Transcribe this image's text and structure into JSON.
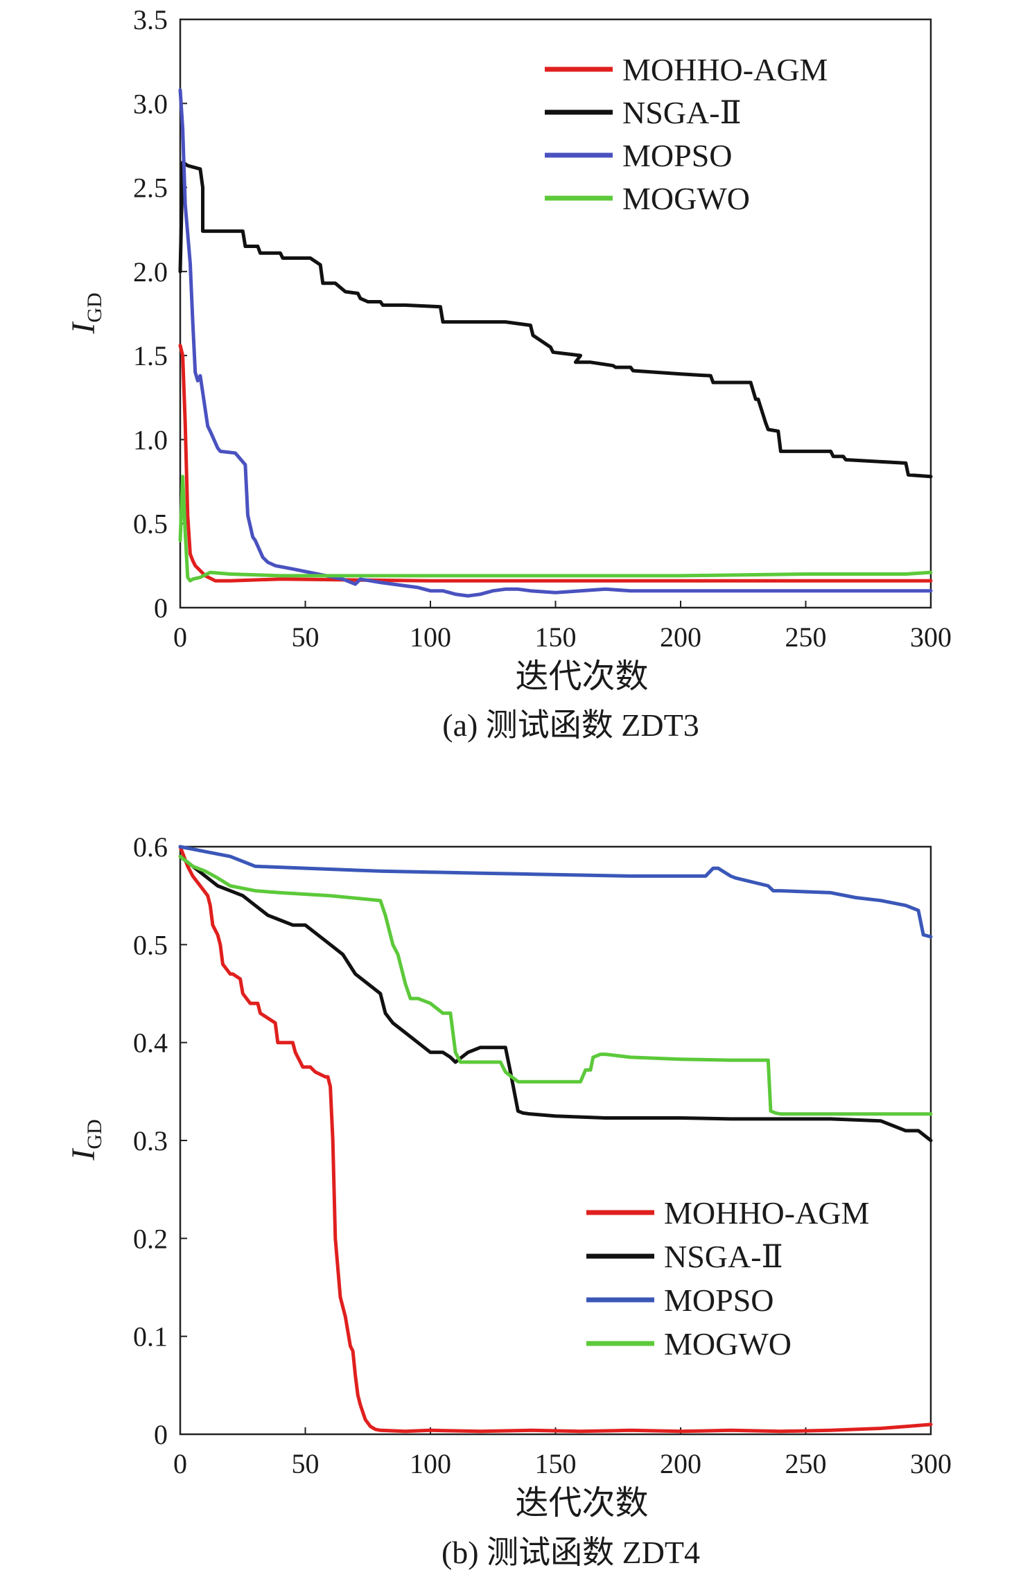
{
  "chart_data": [
    {
      "type": "line",
      "caption": "(a) 测试函数 ZDT3",
      "xlabel": "迭代次数",
      "ylabel": "I",
      "ylabel_sub": "GD",
      "xlim": [
        0,
        300
      ],
      "ylim": [
        0,
        3.5
      ],
      "xticks": [
        0,
        50,
        100,
        150,
        200,
        250,
        300
      ],
      "xtick_labels": [
        "0",
        "50",
        "100",
        "150",
        "200",
        "250",
        "300"
      ],
      "yticks": [
        0,
        0.5,
        1.0,
        1.5,
        2.0,
        2.5,
        3.0,
        3.5
      ],
      "ytick_labels": [
        "0",
        "0.5",
        "1.0",
        "1.5",
        "2.0",
        "2.5",
        "3.0",
        "3.5"
      ],
      "legend_position": "top-right",
      "series": [
        {
          "name": "NSGA-Ⅱ",
          "color": "#111111",
          "x": [
            0,
            1,
            3,
            8,
            9,
            9,
            25,
            26,
            31,
            32,
            40,
            41,
            52,
            56,
            57,
            62,
            66,
            71,
            72,
            75,
            80,
            81,
            90,
            104,
            105,
            130,
            140,
            141,
            148,
            149,
            160,
            158,
            164,
            173,
            174,
            180,
            181,
            200,
            212,
            213,
            228,
            230,
            231,
            234,
            235,
            239,
            240,
            260,
            261,
            265,
            266,
            290,
            291,
            300
          ],
          "y": [
            2.0,
            2.65,
            2.63,
            2.61,
            2.5,
            2.24,
            2.24,
            2.15,
            2.15,
            2.11,
            2.11,
            2.08,
            2.08,
            2.04,
            1.93,
            1.93,
            1.88,
            1.87,
            1.84,
            1.82,
            1.82,
            1.8,
            1.8,
            1.79,
            1.7,
            1.7,
            1.68,
            1.62,
            1.55,
            1.52,
            1.5,
            1.46,
            1.46,
            1.44,
            1.43,
            1.43,
            1.41,
            1.39,
            1.38,
            1.34,
            1.34,
            1.24,
            1.24,
            1.1,
            1.06,
            1.05,
            0.93,
            0.93,
            0.9,
            0.9,
            0.88,
            0.86,
            0.79,
            0.78
          ]
        },
        {
          "name": "MOPSO",
          "color": "#4a52c0",
          "x": [
            0,
            1,
            2,
            4,
            5,
            6,
            7,
            8,
            11,
            12,
            15,
            16,
            22,
            26,
            27,
            29,
            30,
            33,
            35,
            38,
            45,
            55,
            65,
            70,
            72,
            80,
            90,
            95,
            100,
            105,
            110,
            115,
            120,
            125,
            130,
            135,
            140,
            150,
            160,
            170,
            180,
            190,
            200,
            250,
            300
          ],
          "y": [
            3.08,
            2.85,
            2.4,
            2.05,
            1.7,
            1.4,
            1.35,
            1.38,
            1.08,
            1.05,
            0.95,
            0.93,
            0.92,
            0.85,
            0.55,
            0.42,
            0.4,
            0.3,
            0.27,
            0.25,
            0.23,
            0.2,
            0.17,
            0.14,
            0.17,
            0.15,
            0.13,
            0.12,
            0.1,
            0.1,
            0.08,
            0.07,
            0.08,
            0.1,
            0.11,
            0.11,
            0.1,
            0.09,
            0.1,
            0.11,
            0.1,
            0.1,
            0.1,
            0.1,
            0.1
          ]
        },
        {
          "name": "MOHHO-AGM",
          "color": "#e0201e",
          "x": [
            0,
            1,
            2,
            3,
            4,
            5,
            6,
            8,
            10,
            14,
            20,
            40,
            100,
            150,
            200,
            250,
            300
          ],
          "y": [
            1.56,
            1.5,
            1.1,
            0.55,
            0.32,
            0.28,
            0.25,
            0.22,
            0.19,
            0.16,
            0.16,
            0.17,
            0.16,
            0.16,
            0.16,
            0.16,
            0.16
          ]
        },
        {
          "name": "MOGWO",
          "color": "#5cc93a",
          "x": [
            0,
            1,
            2,
            3,
            4,
            5,
            8,
            12,
            20,
            40,
            60,
            80,
            100,
            150,
            200,
            250,
            290,
            300
          ],
          "y": [
            0.4,
            0.78,
            0.45,
            0.18,
            0.16,
            0.17,
            0.18,
            0.21,
            0.2,
            0.19,
            0.19,
            0.19,
            0.19,
            0.19,
            0.19,
            0.2,
            0.2,
            0.21
          ]
        }
      ]
    },
    {
      "type": "line",
      "caption": "(b) 测试函数 ZDT4",
      "xlabel": "迭代次数",
      "ylabel": "I",
      "ylabel_sub": "GD",
      "xlim": [
        0,
        300
      ],
      "ylim": [
        0,
        0.6
      ],
      "xticks": [
        0,
        50,
        100,
        150,
        200,
        250,
        300
      ],
      "xtick_labels": [
        "0",
        "50",
        "100",
        "150",
        "200",
        "250",
        "300"
      ],
      "yticks": [
        0,
        0.1,
        0.2,
        0.3,
        0.4,
        0.5,
        0.6
      ],
      "ytick_labels": [
        "0",
        "0.1",
        "0.2",
        "0.3",
        "0.4",
        "0.5",
        "0.6"
      ],
      "legend_position": "bottom-right",
      "series": [
        {
          "name": "MOHHO-AGM",
          "color": "#e0201e",
          "x": [
            0,
            3,
            5,
            8,
            11,
            12,
            13,
            15,
            16,
            17,
            20,
            21,
            24,
            25,
            28,
            31,
            32,
            38,
            39,
            45,
            46,
            48,
            49,
            52,
            54,
            58,
            59,
            60,
            61,
            62,
            63,
            64,
            66,
            68,
            69,
            70,
            71,
            72,
            74,
            76,
            78,
            80,
            90,
            100,
            120,
            140,
            160,
            180,
            200,
            220,
            240,
            260,
            280,
            290,
            300
          ],
          "y": [
            0.6,
            0.58,
            0.57,
            0.56,
            0.55,
            0.54,
            0.52,
            0.51,
            0.5,
            0.48,
            0.47,
            0.47,
            0.465,
            0.45,
            0.44,
            0.44,
            0.43,
            0.42,
            0.4,
            0.4,
            0.39,
            0.38,
            0.375,
            0.375,
            0.37,
            0.365,
            0.365,
            0.355,
            0.3,
            0.2,
            0.17,
            0.14,
            0.12,
            0.09,
            0.085,
            0.06,
            0.04,
            0.03,
            0.015,
            0.008,
            0.005,
            0.004,
            0.003,
            0.004,
            0.003,
            0.004,
            0.003,
            0.004,
            0.003,
            0.004,
            0.003,
            0.004,
            0.006,
            0.008,
            0.01
          ]
        },
        {
          "name": "NSGA-Ⅱ",
          "color": "#111111",
          "x": [
            0,
            5,
            10,
            15,
            20,
            25,
            30,
            35,
            40,
            45,
            50,
            55,
            60,
            65,
            70,
            75,
            80,
            82,
            85,
            90,
            95,
            100,
            105,
            108,
            110,
            115,
            120,
            125,
            130,
            132,
            135,
            137,
            140,
            150,
            160,
            170,
            180,
            200,
            220,
            240,
            260,
            280,
            290,
            295,
            300
          ],
          "y": [
            0.59,
            0.58,
            0.57,
            0.56,
            0.555,
            0.55,
            0.54,
            0.53,
            0.525,
            0.52,
            0.52,
            0.51,
            0.5,
            0.49,
            0.47,
            0.46,
            0.45,
            0.43,
            0.42,
            0.41,
            0.4,
            0.39,
            0.39,
            0.385,
            0.38,
            0.39,
            0.395,
            0.395,
            0.395,
            0.37,
            0.33,
            0.328,
            0.327,
            0.325,
            0.324,
            0.323,
            0.323,
            0.323,
            0.322,
            0.322,
            0.322,
            0.32,
            0.31,
            0.31,
            0.3
          ]
        },
        {
          "name": "MOPSO",
          "color": "#3a57b8",
          "x": [
            0,
            10,
            20,
            30,
            50,
            60,
            80,
            100,
            120,
            140,
            160,
            180,
            200,
            210,
            213,
            215,
            220,
            222,
            235,
            237,
            240,
            260,
            270,
            280,
            290,
            295,
            297,
            300
          ],
          "y": [
            0.6,
            0.595,
            0.59,
            0.58,
            0.578,
            0.577,
            0.575,
            0.574,
            0.573,
            0.572,
            0.571,
            0.57,
            0.57,
            0.57,
            0.578,
            0.578,
            0.57,
            0.568,
            0.56,
            0.555,
            0.555,
            0.553,
            0.548,
            0.545,
            0.54,
            0.535,
            0.51,
            0.508
          ]
        },
        {
          "name": "MOGWO",
          "color": "#5cc93a",
          "x": [
            0,
            5,
            10,
            15,
            20,
            30,
            40,
            60,
            80,
            82,
            85,
            87,
            90,
            92,
            95,
            100,
            105,
            108,
            110,
            112,
            115,
            120,
            128,
            130,
            135,
            140,
            150,
            160,
            162,
            164,
            165,
            168,
            170,
            180,
            200,
            220,
            235,
            236,
            238,
            240,
            260,
            280,
            300
          ],
          "y": [
            0.59,
            0.58,
            0.575,
            0.568,
            0.56,
            0.555,
            0.553,
            0.55,
            0.545,
            0.53,
            0.5,
            0.49,
            0.46,
            0.445,
            0.445,
            0.44,
            0.43,
            0.43,
            0.39,
            0.38,
            0.38,
            0.38,
            0.38,
            0.37,
            0.36,
            0.36,
            0.36,
            0.36,
            0.372,
            0.372,
            0.385,
            0.388,
            0.388,
            0.385,
            0.383,
            0.382,
            0.382,
            0.33,
            0.328,
            0.327,
            0.327,
            0.327,
            0.327
          ]
        }
      ]
    }
  ]
}
